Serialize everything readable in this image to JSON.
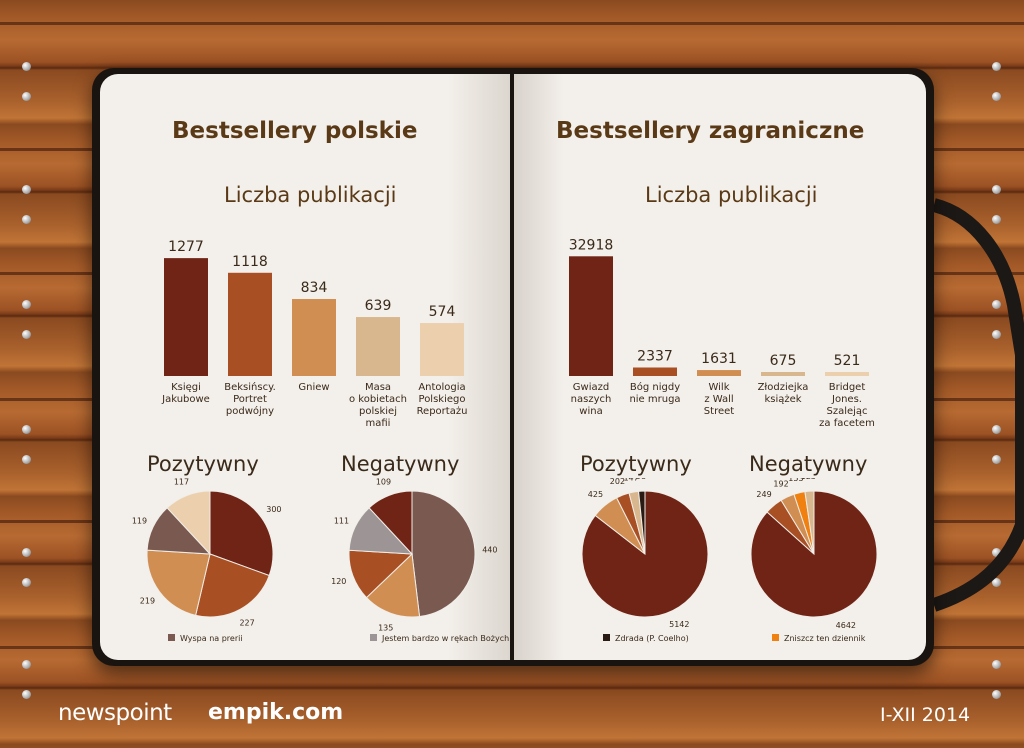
{
  "footer": {
    "logo1": "newspoint",
    "logo2": "empik.com",
    "period": "I-XII 2014"
  },
  "left": {
    "title": "Bestsellery polskie",
    "subtitle": "Liczba publikacji",
    "pie_pos_title": "Pozytywny",
    "pie_neg_title": "Negatywny"
  },
  "right": {
    "title": "Bestsellery zagraniczne",
    "subtitle": "Liczba publikacji",
    "pie_pos_title": "Pozytywny",
    "pie_neg_title": "Negatywny"
  },
  "colors": {
    "c1": "#6f2416",
    "c2": "#a94f24",
    "c3": "#d08e52",
    "c4": "#d9b78e",
    "c5": "#ecd0ae",
    "grey": "#9c9495",
    "orange": "#f08010",
    "dark": "#2a1a14",
    "tagrey": "#7a5a50"
  },
  "chart_data": [
    {
      "id": "bar_pl",
      "type": "bar",
      "title": "Liczba publikacji",
      "categories": [
        [
          "Księgi",
          "Jakubowe"
        ],
        [
          "Beksińscy.",
          "Portret",
          "podwójny"
        ],
        [
          "Gniew"
        ],
        [
          "Masa",
          "o kobietach",
          "polskiej",
          "mafii"
        ],
        [
          "Antologia",
          "Polskiego",
          "Reportażu"
        ]
      ],
      "values": [
        1277,
        1118,
        834,
        639,
        574
      ],
      "colors": [
        "#6f2416",
        "#a94f24",
        "#d08e52",
        "#d9b78e",
        "#ecd0ae"
      ],
      "ylim": [
        0,
        1300
      ]
    },
    {
      "id": "bar_zag",
      "type": "bar",
      "title": "Liczba publikacji",
      "categories": [
        [
          "Gwiazd",
          "naszych",
          "wina"
        ],
        [
          "Bóg nigdy",
          "nie mruga"
        ],
        [
          "Wilk",
          "z Wall",
          "Street"
        ],
        [
          "Złodziejka",
          "książek"
        ],
        [
          "Bridget",
          "Jones.",
          "Szalejąc",
          "za facetem"
        ]
      ],
      "values": [
        32918,
        2337,
        1631,
        675,
        521
      ],
      "colors": [
        "#6f2416",
        "#a94f24",
        "#d08e52",
        "#d9b78e",
        "#ecd0ae"
      ],
      "ylim": [
        0,
        33000
      ]
    },
    {
      "id": "pie_pl_pos",
      "type": "pie",
      "title": "Pozytywny",
      "values": [
        300,
        227,
        219,
        119,
        117
      ],
      "colors": [
        "#6f2416",
        "#a94f24",
        "#d08e52",
        "#7a5a50",
        "#ecd0ae"
      ],
      "legend": "Wyspa na prerii",
      "legend_color": "#7a5a50"
    },
    {
      "id": "pie_pl_neg",
      "type": "pie",
      "title": "Negatywny",
      "values": [
        440,
        135,
        120,
        111,
        109
      ],
      "colors": [
        "#7a5a50",
        "#d08e52",
        "#a94f24",
        "#9c9495",
        "#6f2416"
      ],
      "legend": "Jestem bardzo w rękach Bożych",
      "legend_color": "#9c9495"
    },
    {
      "id": "pie_zag_pos",
      "type": "pie",
      "title": "Pozytywny",
      "values": [
        5142,
        425,
        202,
        147,
        98
      ],
      "colors": [
        "#6f2416",
        "#d08e52",
        "#a94f24",
        "#d9b78e",
        "#2a1a14"
      ],
      "legend": "Zdrada (P. Coelho)",
      "legend_color": "#2a1a14"
    },
    {
      "id": "pie_zag_neg",
      "type": "pie",
      "title": "Negatywny",
      "values": [
        4642,
        249,
        192,
        153,
        123
      ],
      "colors": [
        "#6f2416",
        "#a94f24",
        "#d08e52",
        "#f08010",
        "#d9b78e"
      ],
      "legend": "Zniszcz ten dziennik",
      "legend_color": "#f08010"
    }
  ]
}
